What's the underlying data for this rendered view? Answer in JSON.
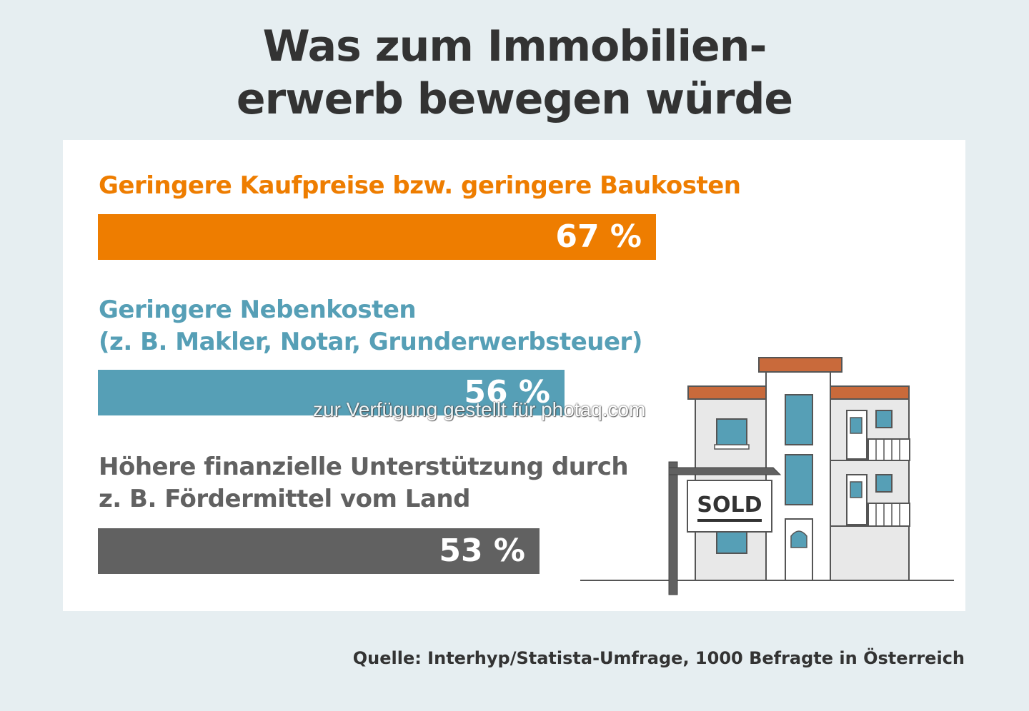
{
  "title_lines": [
    "Was zum Immobilien-",
    "erwerb bewegen würde"
  ],
  "source": "Quelle: Interhyp/Statista-Umfrage, 1000 Befragte in Österreich",
  "watermark": "zur Verfügung gestellt für photaq.com",
  "sign_text": "SOLD",
  "colors": {
    "orange": "#ee7d00",
    "teal": "#569fb6",
    "gray": "#616161",
    "background": "#e6eef1"
  },
  "chart_data": {
    "type": "bar",
    "orientation": "horizontal",
    "title": "Was zum Immobilienerwerb bewegen würde",
    "categories": [
      [
        "Geringere Kaufpreise bzw. geringere Baukosten"
      ],
      [
        "Geringere Nebenkosten",
        "(z. B. Makler, Notar, Grunderwerbsteuer)"
      ],
      [
        "Höhere finanzielle Unterstützung durch",
        "z. B. Fördermittel vom Land"
      ]
    ],
    "values": [
      67,
      56,
      53
    ],
    "value_labels": [
      "67 %",
      "56 %",
      "53 %"
    ],
    "unit": "%",
    "colors": [
      "#ee7d00",
      "#569fb6",
      "#616161"
    ],
    "grid": false,
    "legend": false
  }
}
